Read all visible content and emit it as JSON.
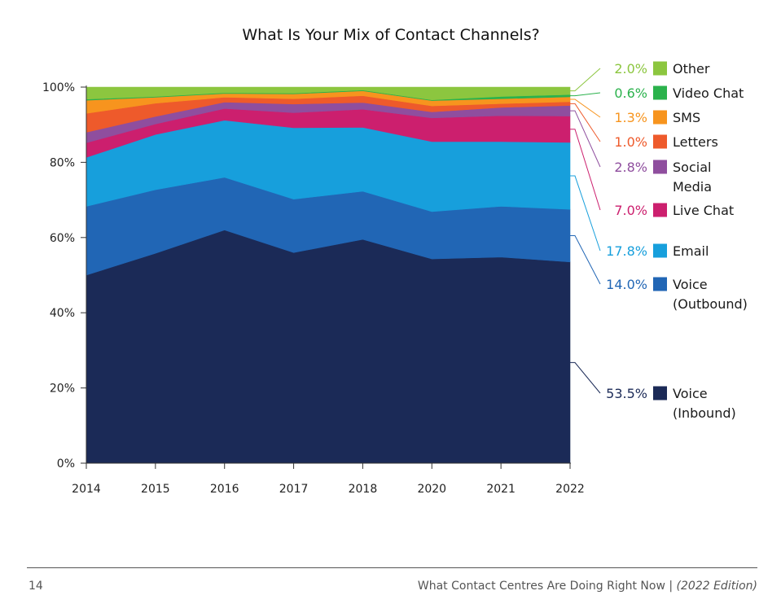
{
  "page": {
    "number": "14",
    "doc_title": "What Contact Centres Are Doing Right Now | ",
    "edition": "(2022 Edition)"
  },
  "chart_data": {
    "type": "area",
    "stacked": true,
    "title": "What Is Your Mix of Contact Channels?",
    "xlabel": "",
    "ylabel": "",
    "categories": [
      "2014",
      "2015",
      "2016",
      "2017",
      "2018",
      "2020",
      "2021",
      "2022"
    ],
    "ylim": [
      0,
      100
    ],
    "y_ticks": [
      "0%",
      "20%",
      "40%",
      "60%",
      "80%",
      "100%"
    ],
    "grid": false,
    "legend_position": "right",
    "series": [
      {
        "name": "Voice (Inbound)",
        "label_lines": [
          "Voice",
          "(Inbound)"
        ],
        "pct": "53.5%",
        "color": "#1b2a57",
        "values": [
          50.0,
          55.8,
          62.0,
          56.0,
          59.5,
          54.3,
          54.8,
          53.5
        ]
      },
      {
        "name": "Voice (Outbound)",
        "label_lines": [
          "Voice",
          "(Outbound)"
        ],
        "pct": "14.0%",
        "color": "#2166b5",
        "values": [
          18.3,
          16.9,
          14.0,
          14.2,
          12.8,
          12.6,
          13.5,
          14.0
        ]
      },
      {
        "name": "Email",
        "label_lines": [
          "Email"
        ],
        "pct": "17.8%",
        "color": "#179fdc",
        "values": [
          13.0,
          14.7,
          15.2,
          19.0,
          17.0,
          18.6,
          17.2,
          17.8
        ]
      },
      {
        "name": "Live Chat",
        "label_lines": [
          "Live Chat"
        ],
        "pct": "7.0%",
        "color": "#cc1f6e",
        "values": [
          3.9,
          2.8,
          3.1,
          4.0,
          4.8,
          6.3,
          6.9,
          7.0
        ]
      },
      {
        "name": "Social Media",
        "label_lines": [
          "Social",
          "Media"
        ],
        "pct": "2.8%",
        "color": "#8f4e9e",
        "values": [
          2.8,
          2.0,
          1.7,
          2.3,
          1.8,
          1.6,
          2.2,
          2.8
        ]
      },
      {
        "name": "Letters",
        "label_lines": [
          "Letters"
        ],
        "pct": "1.0%",
        "color": "#ee5a2b",
        "values": [
          5.0,
          3.5,
          1.3,
          1.4,
          1.8,
          1.6,
          1.0,
          1.0
        ]
      },
      {
        "name": "SMS",
        "label_lines": [
          "SMS"
        ],
        "pct": "1.3%",
        "color": "#f7941e",
        "values": [
          3.5,
          1.6,
          1.0,
          1.3,
          1.3,
          1.4,
          1.3,
          1.3
        ]
      },
      {
        "name": "Video Chat",
        "label_lines": [
          "Video Chat"
        ],
        "pct": "0.6%",
        "color": "#2bb24c",
        "values": [
          0.3,
          0.2,
          0.2,
          0.2,
          0.2,
          0.2,
          0.6,
          0.6
        ]
      },
      {
        "name": "Other",
        "label_lines": [
          "Other"
        ],
        "pct": "2.0%",
        "color": "#8cc63f",
        "values": [
          3.2,
          2.5,
          1.5,
          1.6,
          0.8,
          3.4,
          2.5,
          2.0
        ]
      }
    ],
    "text_colors": {
      "Voice (Inbound)": "#1b2a57",
      "Voice (Outbound)": "#2166b5",
      "Email": "#179fdc",
      "Live Chat": "#cc1f6e",
      "Social Media": "#8f4e9e",
      "Letters": "#ee5a2b",
      "SMS": "#f7941e",
      "Video Chat": "#2bb24c",
      "Other": "#8cc63f"
    }
  }
}
